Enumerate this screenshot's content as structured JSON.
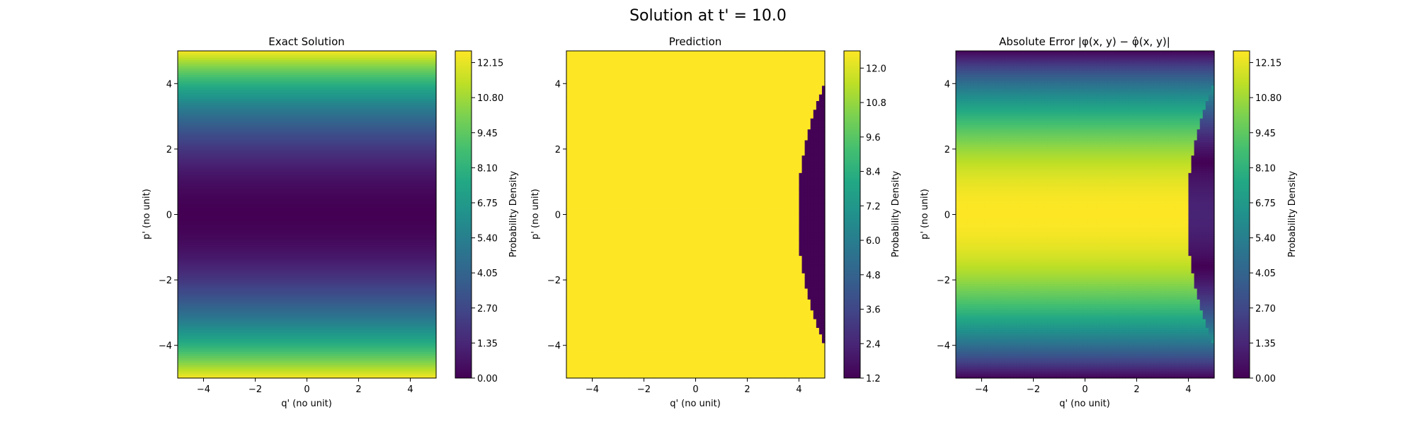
{
  "suptitle": "Solution at t' = 10.0",
  "chart_data": [
    {
      "type": "heatmap",
      "title": "Exact Solution",
      "xlabel": "q' (no unit)",
      "ylabel": "p' (no unit)",
      "xlim": [
        -5,
        5
      ],
      "ylim": [
        -5,
        5
      ],
      "xticks": [
        "−4",
        "−2",
        "0",
        "2",
        "4"
      ],
      "yticks": [
        "−4",
        "−2",
        "0",
        "2",
        "4"
      ],
      "colorbar": {
        "label": "Probability Density",
        "range": [
          0.0,
          12.6
        ],
        "ticks": [
          "0.00",
          "1.35",
          "2.70",
          "4.05",
          "5.40",
          "6.75",
          "8.10",
          "9.45",
          "10.80",
          "12.15"
        ],
        "tick_values": [
          0.0,
          1.35,
          2.7,
          4.05,
          5.4,
          6.75,
          8.1,
          9.45,
          10.8,
          12.15
        ]
      },
      "pattern": "value = 0.5 * p'^2 (depends on p' only)"
    },
    {
      "type": "heatmap",
      "title": "Prediction",
      "xlabel": "q' (no unit)",
      "ylabel": "p' (no unit)",
      "xlim": [
        -5,
        5
      ],
      "ylim": [
        -5,
        5
      ],
      "xticks": [
        "−4",
        "−2",
        "0",
        "2",
        "4"
      ],
      "yticks": [
        "−4",
        "−2",
        "0",
        "2",
        "4"
      ],
      "colorbar": {
        "label": "Probability Density",
        "range": [
          1.2,
          12.6
        ],
        "ticks": [
          "1.2",
          "2.4",
          "3.6",
          "4.8",
          "6.0",
          "7.2",
          "8.4",
          "9.6",
          "10.8",
          "12.0"
        ],
        "tick_values": [
          1.2,
          2.4,
          3.6,
          4.8,
          6.0,
          7.2,
          8.4,
          9.6,
          10.8,
          12.0
        ]
      },
      "pattern": "~12.6 everywhere except a crescent region near q' >= 4 with value ~1.2"
    },
    {
      "type": "heatmap",
      "title": "Absolute Error |φ(x, y) − φ̂(x, y)|",
      "xlabel": "q' (no unit)",
      "ylabel": "p' (no unit)",
      "xlim": [
        -5,
        5
      ],
      "ylim": [
        -5,
        5
      ],
      "xticks": [
        "−4",
        "−2",
        "0",
        "2",
        "4"
      ],
      "yticks": [
        "−4",
        "−2",
        "0",
        "2",
        "4"
      ],
      "colorbar": {
        "label": "Probability Density",
        "range": [
          0.0,
          12.6
        ],
        "ticks": [
          "0.00",
          "1.35",
          "2.70",
          "4.05",
          "5.40",
          "6.75",
          "8.10",
          "9.45",
          "10.80",
          "12.15"
        ],
        "tick_values": [
          0.0,
          1.35,
          2.7,
          4.05,
          5.4,
          6.75,
          8.1,
          9.45,
          10.8,
          12.15
        ]
      },
      "pattern": "|prediction - exact|: ~12.6 - 0.5 p'^2 outside crescent, |1.2 - 0.5 p'^2| inside crescent"
    }
  ]
}
